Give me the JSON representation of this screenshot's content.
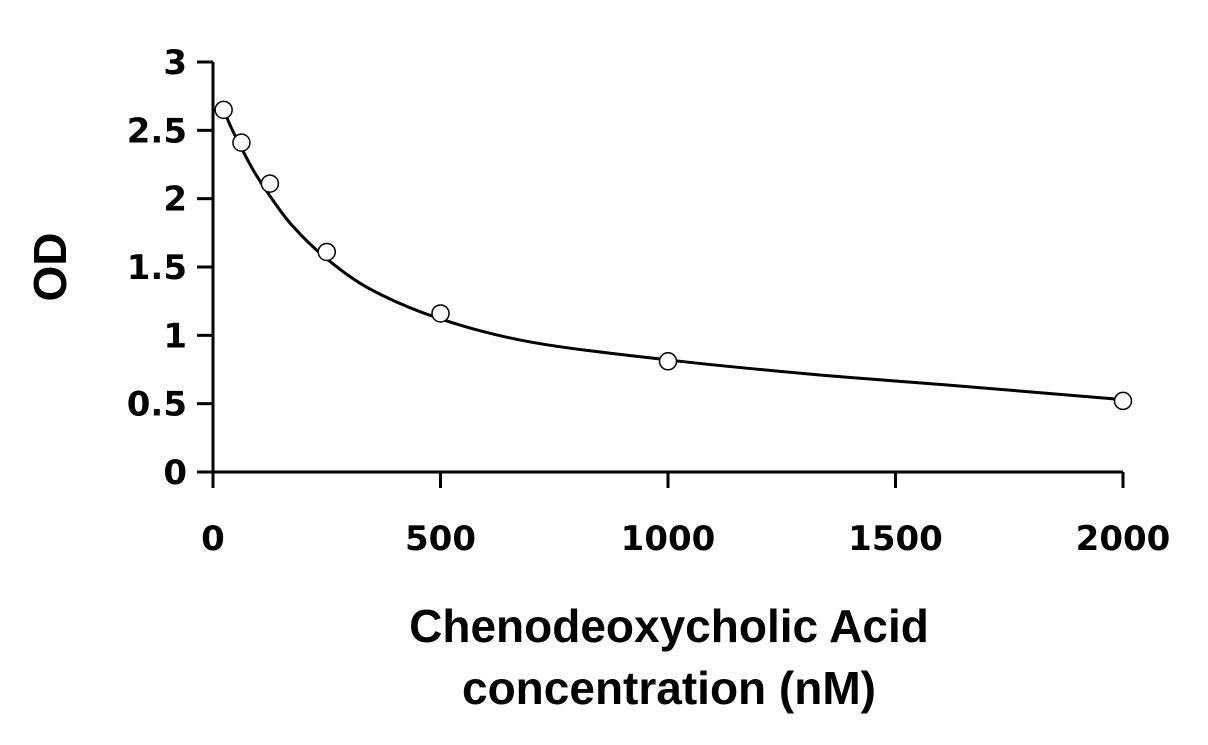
{
  "chart_data": {
    "type": "scatter",
    "title": "",
    "xlabel_lines": [
      "Chenodeoxycholic Acid",
      "concentration (nM)"
    ],
    "ylabel": "OD",
    "xlim": [
      0,
      2000
    ],
    "ylim": [
      0,
      3
    ],
    "xticks": [
      0,
      500,
      1000,
      1500,
      2000
    ],
    "xtick_labels": [
      "0",
      "500",
      "1000",
      "1500",
      "2000"
    ],
    "yticks": [
      0,
      0.5,
      1,
      1.5,
      2,
      2.5,
      3
    ],
    "ytick_labels": [
      "0",
      "0.5",
      "1",
      "1.5",
      "2",
      "2.5",
      "3"
    ],
    "grid": false,
    "legend": "none",
    "series": [
      {
        "marker": "open-circle",
        "x": [
          23.4,
          62.5,
          125,
          250,
          500,
          1000,
          2000
        ],
        "y": [
          2.65,
          2.41,
          2.11,
          1.61,
          1.16,
          0.81,
          0.52
        ]
      }
    ],
    "fit_curve": {
      "style": "smooth-line",
      "x": [
        23.4,
        40,
        62.5,
        90,
        125,
        175,
        250,
        350,
        500,
        700,
        1000,
        1300,
        1600,
        2000
      ],
      "y": [
        2.65,
        2.52,
        2.37,
        2.2,
        2.02,
        1.8,
        1.56,
        1.33,
        1.12,
        0.95,
        0.82,
        0.72,
        0.64,
        0.53
      ]
    }
  }
}
